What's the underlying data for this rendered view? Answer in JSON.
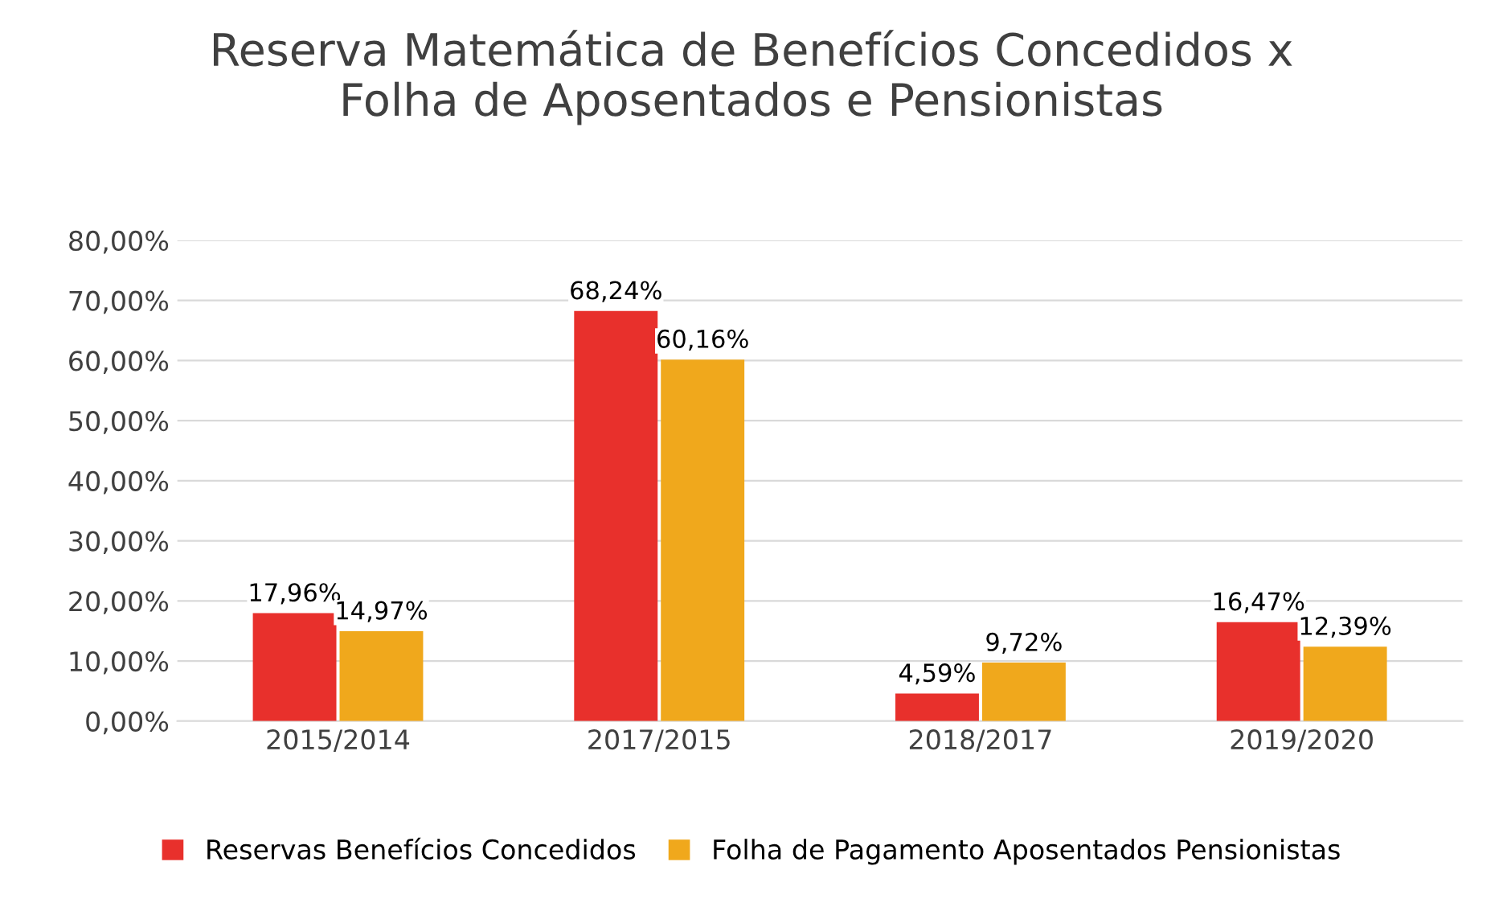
{
  "chart_data": {
    "type": "bar",
    "title": "Reserva Matemática de Benefícios Concedidos x\nFolha de Aposentados e Pensionistas",
    "categories": [
      "2015/2014",
      "2017/2015",
      "2018/2017",
      "2019/2020"
    ],
    "series": [
      {
        "name": "Reservas Benefícios Concedidos",
        "color": "#e8302c",
        "values": [
          17.96,
          68.24,
          4.59,
          16.47
        ],
        "value_labels": [
          "17,96%",
          "68,24%",
          "4,59%",
          "16,47%"
        ]
      },
      {
        "name": "Folha de Pagamento Aposentados Pensionistas",
        "color": "#f0a81c",
        "values": [
          14.97,
          60.16,
          9.72,
          12.39
        ],
        "value_labels": [
          "14,97%",
          "60,16%",
          "9,72%",
          "12,39%"
        ]
      }
    ],
    "ylim": [
      0,
      80
    ],
    "yticks": [
      {
        "value": 0,
        "label": "0,00%"
      },
      {
        "value": 10,
        "label": "10,00%"
      },
      {
        "value": 20,
        "label": "20,00%"
      },
      {
        "value": 30,
        "label": "30,00%"
      },
      {
        "value": 40,
        "label": "40,00%"
      },
      {
        "value": 50,
        "label": "50,00%"
      },
      {
        "value": 60,
        "label": "60,00%"
      },
      {
        "value": 70,
        "label": "70,00%"
      },
      {
        "value": 80,
        "label": "80,00%"
      }
    ],
    "grid": "y",
    "legend": "bottom"
  }
}
